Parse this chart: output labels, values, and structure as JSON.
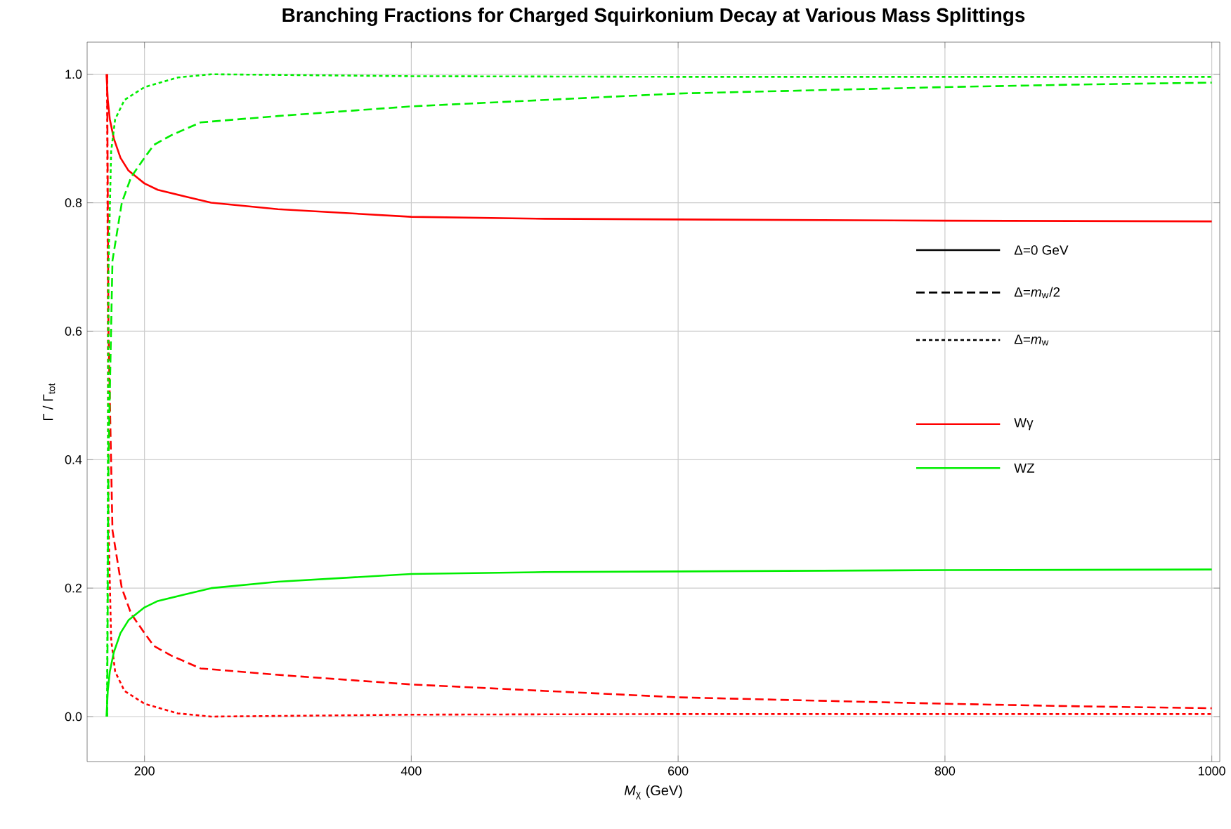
{
  "chart_data": {
    "type": "line",
    "title": "Branching Fractions for Charged Squirkonium Decay at Various Mass Splittings",
    "xlabel": "*M*$_{χ}$ (GeV)",
    "ylabel": "Γ / Γ$_{tot}$",
    "xlim": [
      157,
      1006
    ],
    "ylim": [
      -0.07,
      1.05
    ],
    "xticks": [
      200,
      400,
      600,
      800,
      1000
    ],
    "yticks": [
      {
        "value": 0,
        "label": "0.0"
      },
      0.2,
      0.4,
      0.6,
      0.8,
      {
        "value": 1,
        "label": "1.0"
      }
    ],
    "grid": true,
    "annotations": [
      "Δ=0 GeV",
      "Δ=*m*$_{w}$/2",
      "Δ=*m*$_{w}$",
      "Wγ",
      "WZ"
    ],
    "series": [
      {
        "color": "#ff0000",
        "line_style": "solid",
        "x": [
          171.5,
          172.5,
          174,
          177,
          182,
          188,
          200,
          210,
          230,
          250,
          300,
          400,
          500,
          600,
          800,
          1000
        ],
        "values": [
          1.0,
          0.96,
          0.93,
          0.9,
          0.87,
          0.85,
          0.83,
          0.82,
          0.81,
          0.8,
          0.79,
          0.778,
          0.775,
          0.774,
          0.772,
          0.771
        ]
      },
      {
        "color": "#ff0000",
        "line_style": "dashed",
        "x": [
          172,
          173,
          176,
          183,
          190,
          200,
          207,
          220,
          242,
          300,
          400,
          500,
          600,
          700,
          800,
          900,
          1000
        ],
        "values": [
          1.0,
          0.6,
          0.29,
          0.2,
          0.16,
          0.13,
          0.11,
          0.095,
          0.075,
          0.065,
          0.05,
          0.04,
          0.03,
          0.025,
          0.02,
          0.016,
          0.013
        ]
      },
      {
        "color": "#ff0000",
        "line_style": "dotted",
        "x": [
          172,
          173,
          175,
          178,
          185,
          200,
          225,
          250,
          300,
          400,
          600,
          800,
          1000
        ],
        "values": [
          1.0,
          0.3,
          0.12,
          0.07,
          0.04,
          0.02,
          0.005,
          0.0,
          0.001,
          0.003,
          0.004,
          0.004,
          0.004
        ]
      },
      {
        "color": "#00ee00",
        "line_style": "solid",
        "x": [
          171.5,
          172.5,
          174,
          177,
          182,
          188,
          200,
          210,
          230,
          250,
          300,
          400,
          500,
          600,
          800,
          1000
        ],
        "values": [
          0.0,
          0.04,
          0.07,
          0.1,
          0.13,
          0.15,
          0.17,
          0.18,
          0.19,
          0.2,
          0.21,
          0.222,
          0.225,
          0.226,
          0.228,
          0.229
        ]
      },
      {
        "color": "#00ee00",
        "line_style": "dashed",
        "x": [
          172,
          173,
          176,
          183,
          190,
          200,
          207,
          220,
          242,
          300,
          400,
          500,
          600,
          700,
          800,
          900,
          1000
        ],
        "values": [
          0.0,
          0.4,
          0.71,
          0.8,
          0.84,
          0.87,
          0.89,
          0.905,
          0.925,
          0.935,
          0.95,
          0.96,
          0.97,
          0.975,
          0.98,
          0.984,
          0.987
        ]
      },
      {
        "color": "#00ee00",
        "line_style": "dotted",
        "x": [
          172,
          173,
          175,
          178,
          185,
          200,
          225,
          250,
          300,
          400,
          600,
          800,
          1000
        ],
        "values": [
          0.0,
          0.7,
          0.88,
          0.93,
          0.96,
          0.98,
          0.995,
          1.0,
          0.999,
          0.997,
          0.996,
          0.996,
          0.996
        ]
      }
    ]
  }
}
